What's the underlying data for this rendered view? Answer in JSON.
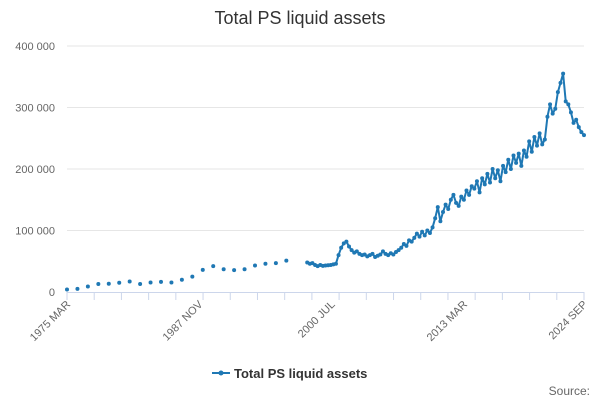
{
  "chart_data": {
    "type": "line",
    "title": "Total PS liquid assets",
    "xlabel": "",
    "ylabel": "",
    "x_ticks": [
      "1975 MAR",
      "1987 NOV",
      "2000 JUL",
      "2013 MAR",
      "2024 SEP"
    ],
    "y_ticks": [
      "0",
      "100 000",
      "200 000",
      "300 000",
      "400 000"
    ],
    "ylim": [
      0,
      400000
    ],
    "grid": true,
    "legend_position": "bottom",
    "credit": "Source:",
    "colors": {
      "series": "#1f78b4",
      "grid": "#e6e6e6",
      "axis": "#ccd6eb"
    },
    "series": [
      {
        "name": "Total PS liquid assets",
        "points": [
          [
            "1975-03",
            4000
          ],
          [
            "1976-03",
            5000
          ],
          [
            "1977-03",
            9000
          ],
          [
            "1978-03",
            13000
          ],
          [
            "1979-03",
            13500
          ],
          [
            "1980-03",
            15000
          ],
          [
            "1981-03",
            17000
          ],
          [
            "1982-03",
            13000
          ],
          [
            "1983-03",
            15500
          ],
          [
            "1984-03",
            16500
          ],
          [
            "1985-03",
            15500
          ],
          [
            "1986-03",
            20000
          ],
          [
            "1987-03",
            25000
          ],
          [
            "1988-03",
            36000
          ],
          [
            "1989-03",
            42000
          ],
          [
            "1990-03",
            37000
          ],
          [
            "1991-03",
            35500
          ],
          [
            "1992-03",
            37000
          ],
          [
            "1993-03",
            43000
          ],
          [
            "1994-03",
            46000
          ],
          [
            "1995-03",
            47000
          ],
          [
            "1996-03",
            51000
          ],
          [
            "1998-03",
            48000
          ],
          [
            "1998-06",
            46000
          ],
          [
            "1998-09",
            47000
          ],
          [
            "1998-12",
            44000
          ],
          [
            "1999-03",
            42000
          ],
          [
            "1999-06",
            44000
          ],
          [
            "1999-09",
            42500
          ],
          [
            "1999-12",
            43000
          ],
          [
            "2000-03",
            43500
          ],
          [
            "2000-06",
            44000
          ],
          [
            "2000-09",
            45000
          ],
          [
            "2000-12",
            46000
          ],
          [
            "2001-03",
            60000
          ],
          [
            "2001-06",
            72000
          ],
          [
            "2001-09",
            79000
          ],
          [
            "2001-12",
            82000
          ],
          [
            "2002-03",
            74000
          ],
          [
            "2002-06",
            68000
          ],
          [
            "2002-09",
            64000
          ],
          [
            "2002-12",
            66000
          ],
          [
            "2003-03",
            62000
          ],
          [
            "2003-06",
            60000
          ],
          [
            "2003-09",
            61000
          ],
          [
            "2003-12",
            58000
          ],
          [
            "2004-03",
            60000
          ],
          [
            "2004-06",
            62000
          ],
          [
            "2004-09",
            57000
          ],
          [
            "2004-12",
            59000
          ],
          [
            "2005-03",
            61000
          ],
          [
            "2005-06",
            66000
          ],
          [
            "2005-09",
            62000
          ],
          [
            "2005-12",
            60000
          ],
          [
            "2006-03",
            63000
          ],
          [
            "2006-06",
            61000
          ],
          [
            "2006-09",
            65000
          ],
          [
            "2006-12",
            68000
          ],
          [
            "2007-03",
            72000
          ],
          [
            "2007-06",
            78000
          ],
          [
            "2007-09",
            75000
          ],
          [
            "2007-12",
            84000
          ],
          [
            "2008-03",
            82000
          ],
          [
            "2008-06",
            88000
          ],
          [
            "2008-09",
            95000
          ],
          [
            "2008-12",
            90000
          ],
          [
            "2009-03",
            98000
          ],
          [
            "2009-06",
            92000
          ],
          [
            "2009-09",
            100000
          ],
          [
            "2009-12",
            96000
          ],
          [
            "2010-03",
            105000
          ],
          [
            "2010-06",
            120000
          ],
          [
            "2010-09",
            138000
          ],
          [
            "2010-12",
            115000
          ],
          [
            "2011-03",
            130000
          ],
          [
            "2011-06",
            142000
          ],
          [
            "2011-09",
            135000
          ],
          [
            "2011-12",
            150000
          ],
          [
            "2012-03",
            158000
          ],
          [
            "2012-06",
            145000
          ],
          [
            "2012-09",
            140000
          ],
          [
            "2012-12",
            155000
          ],
          [
            "2013-03",
            150000
          ],
          [
            "2013-06",
            165000
          ],
          [
            "2013-09",
            158000
          ],
          [
            "2013-12",
            172000
          ],
          [
            "2014-03",
            168000
          ],
          [
            "2014-06",
            180000
          ],
          [
            "2014-09",
            162000
          ],
          [
            "2014-12",
            185000
          ],
          [
            "2015-03",
            175000
          ],
          [
            "2015-06",
            192000
          ],
          [
            "2015-09",
            178000
          ],
          [
            "2015-12",
            200000
          ],
          [
            "2016-03",
            185000
          ],
          [
            "2016-06",
            198000
          ],
          [
            "2016-09",
            180000
          ],
          [
            "2016-12",
            205000
          ],
          [
            "2017-03",
            195000
          ],
          [
            "2017-06",
            215000
          ],
          [
            "2017-09",
            200000
          ],
          [
            "2017-12",
            222000
          ],
          [
            "2018-03",
            210000
          ],
          [
            "2018-06",
            225000
          ],
          [
            "2018-09",
            205000
          ],
          [
            "2018-12",
            230000
          ],
          [
            "2019-03",
            220000
          ],
          [
            "2019-06",
            245000
          ],
          [
            "2019-09",
            228000
          ],
          [
            "2019-12",
            252000
          ],
          [
            "2020-03",
            238000
          ],
          [
            "2020-06",
            258000
          ],
          [
            "2020-09",
            240000
          ],
          [
            "2020-12",
            248000
          ],
          [
            "2021-03",
            285000
          ],
          [
            "2021-06",
            305000
          ],
          [
            "2021-09",
            290000
          ],
          [
            "2021-12",
            298000
          ],
          [
            "2022-03",
            325000
          ],
          [
            "2022-06",
            340000
          ],
          [
            "2022-09",
            355000
          ],
          [
            "2022-12",
            310000
          ],
          [
            "2023-03",
            305000
          ],
          [
            "2023-06",
            292000
          ],
          [
            "2023-09",
            275000
          ],
          [
            "2023-12",
            280000
          ],
          [
            "2024-03",
            268000
          ],
          [
            "2024-06",
            260000
          ],
          [
            "2024-09",
            255000
          ]
        ]
      }
    ]
  }
}
